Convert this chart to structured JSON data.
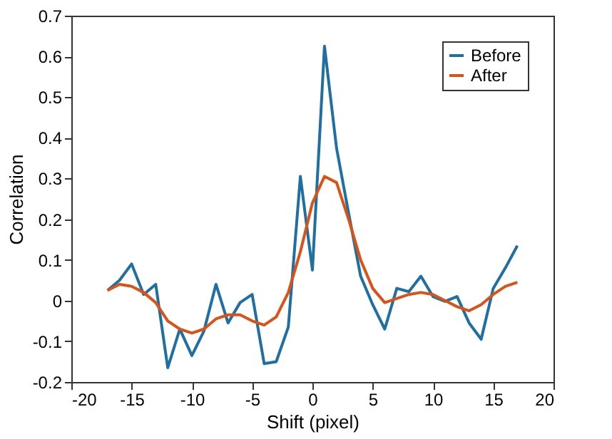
{
  "chart_data": {
    "type": "line",
    "xlabel": "Shift (pixel)",
    "ylabel": "Correlation",
    "x": [
      -17,
      -16,
      -15,
      -14,
      -13,
      -12,
      -11,
      -10,
      -9,
      -8,
      -7,
      -6,
      -5,
      -4,
      -3,
      -2,
      -1,
      0,
      1,
      2,
      3,
      4,
      5,
      6,
      7,
      8,
      9,
      10,
      11,
      12,
      13,
      14,
      15,
      16,
      17
    ],
    "series": [
      {
        "name": "Before",
        "color": "#1f6fa3",
        "values": [
          0.025,
          0.05,
          0.09,
          0.015,
          0.04,
          -0.165,
          -0.07,
          -0.135,
          -0.075,
          0.04,
          -0.055,
          -0.005,
          0.015,
          -0.155,
          -0.15,
          -0.065,
          0.305,
          0.075,
          0.625,
          0.375,
          0.215,
          0.06,
          -0.01,
          -0.07,
          0.03,
          0.022,
          0.06,
          0.01,
          -0.002,
          0.01,
          -0.055,
          -0.095,
          0.03,
          0.08,
          0.135
        ]
      },
      {
        "name": "After",
        "color": "#d95319",
        "values": [
          0.025,
          0.04,
          0.035,
          0.02,
          -0.005,
          -0.05,
          -0.07,
          -0.08,
          -0.07,
          -0.045,
          -0.035,
          -0.035,
          -0.05,
          -0.06,
          -0.04,
          0.02,
          0.12,
          0.24,
          0.305,
          0.29,
          0.2,
          0.1,
          0.03,
          -0.005,
          0.005,
          0.015,
          0.02,
          0.015,
          0,
          -0.015,
          -0.025,
          -0.01,
          0.015,
          0.035,
          0.045
        ]
      }
    ],
    "xlim": [
      -20,
      20
    ],
    "xticks": [
      -20,
      -15,
      -10,
      -5,
      0,
      5,
      10,
      15,
      20
    ],
    "ylim": [
      -0.2,
      0.7
    ],
    "yticks": [
      -0.2,
      -0.1,
      0,
      0.1,
      0.2,
      0.3,
      0.4,
      0.5,
      0.6,
      0.7
    ],
    "grid": false,
    "legend": "top right",
    "marker": "none",
    "line_style": "solid"
  }
}
